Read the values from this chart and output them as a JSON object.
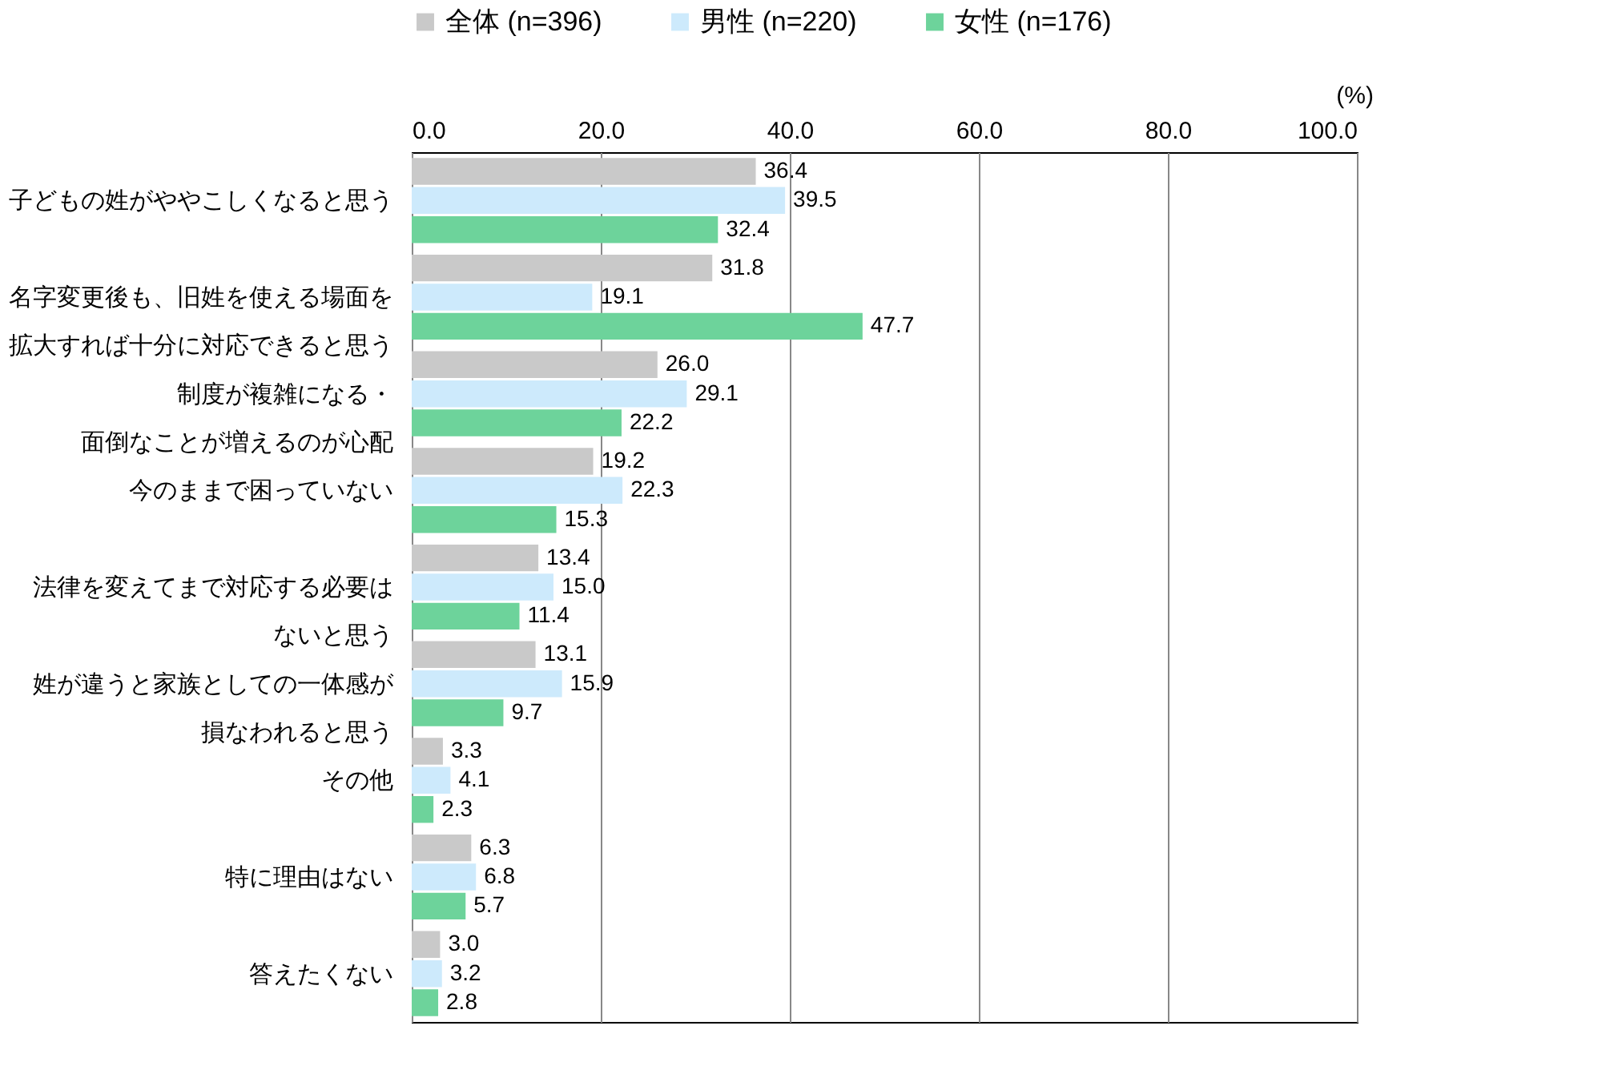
{
  "chart_data": {
    "type": "bar",
    "orientation": "horizontal",
    "xlabel": "(%)",
    "categories": [
      "子どもの姓がややこしくなると思う",
      "名字変更後も、旧姓を使える場面を拡大すれば十分に対応できると思う",
      "制度が複雑になる・面倒なことが増えるのが心配",
      "今のままで困っていない",
      "法律を変えてまで対応する必要はないと思う",
      "姓が違うと家族としての一体感が損なわれると思う",
      "その他",
      "特に理由はない",
      "答えたくない"
    ],
    "series": [
      {
        "name": "全体 (n=396)",
        "color": "#c9c9c9",
        "values": [
          36.4,
          31.8,
          26.0,
          19.2,
          13.4,
          13.1,
          3.3,
          6.3,
          3.0
        ],
        "value_labels": [
          "36.4",
          "31.8",
          "26.0",
          "19.2",
          "13.4",
          "13.1",
          "3.3",
          "6.3",
          "3.0"
        ]
      },
      {
        "name": "男性 (n=220)",
        "color": "#cdeafc",
        "values": [
          39.5,
          19.1,
          29.1,
          22.3,
          15.0,
          15.9,
          4.1,
          6.8,
          3.2
        ],
        "value_labels": [
          "39.5",
          "19.1",
          "29.1",
          "22.3",
          "15.0",
          "15.9",
          "4.1",
          "6.8",
          "3.2"
        ]
      },
      {
        "name": "女性 (n=176)",
        "color": "#6dd39b",
        "values": [
          32.4,
          47.7,
          22.2,
          15.3,
          11.4,
          9.7,
          2.3,
          5.7,
          2.8
        ],
        "value_labels": [
          "32.4",
          "47.7",
          "22.2",
          "15.3",
          "11.4",
          "9.7",
          "2.3",
          "5.7",
          "2.8"
        ]
      }
    ],
    "xlim": [
      0,
      100
    ],
    "xticks": [
      {
        "value": 0,
        "label": "0.0"
      },
      {
        "value": 20,
        "label": "20.0"
      },
      {
        "value": 40,
        "label": "40.0"
      },
      {
        "value": 60,
        "label": "60.0"
      },
      {
        "value": 80,
        "label": "80.0"
      },
      {
        "value": 100,
        "label": "100.0"
      }
    ],
    "grid": "x",
    "legend": "top"
  }
}
